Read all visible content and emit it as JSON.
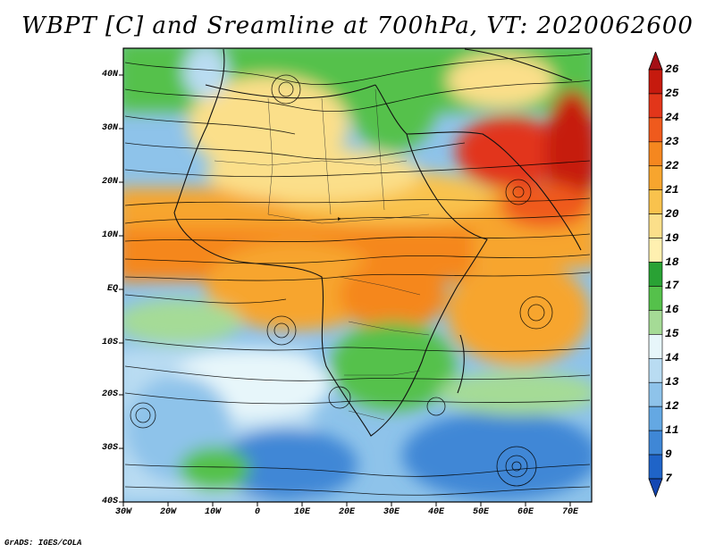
{
  "title": "WBPT [C] and Sreamline at 700hPa, VT: 2020062600",
  "footer": "GrADS: IGES/COLA",
  "map": {
    "lat_labels": [
      "40N",
      "30N",
      "20N",
      "10N",
      "EQ",
      "10S",
      "20S",
      "30S",
      "40S"
    ],
    "lon_labels": [
      "30W",
      "20W",
      "10W",
      "0",
      "10E",
      "20E",
      "30E",
      "40E",
      "50E",
      "60E",
      "70E"
    ],
    "lat_range": [
      -40,
      45
    ],
    "lon_range": [
      -30,
      75
    ]
  },
  "colorbar": {
    "labels": [
      "26",
      "25",
      "24",
      "23",
      "22",
      "21",
      "20",
      "19",
      "18",
      "17",
      "16",
      "15",
      "14",
      "13",
      "12",
      "11",
      "9",
      "7"
    ],
    "colors": [
      "#a50f15",
      "#c61a0e",
      "#e2361a",
      "#ef5a1d",
      "#f5871f",
      "#f7a52e",
      "#f9c24d",
      "#fbdf8a",
      "#fff0b0",
      "#29a234",
      "#55c14b",
      "#a5db96",
      "#e7f6fa",
      "#b9dcf2",
      "#8ec3ea",
      "#64a8e3",
      "#3f87d6",
      "#1f64c8",
      "#1447b3"
    ]
  }
}
